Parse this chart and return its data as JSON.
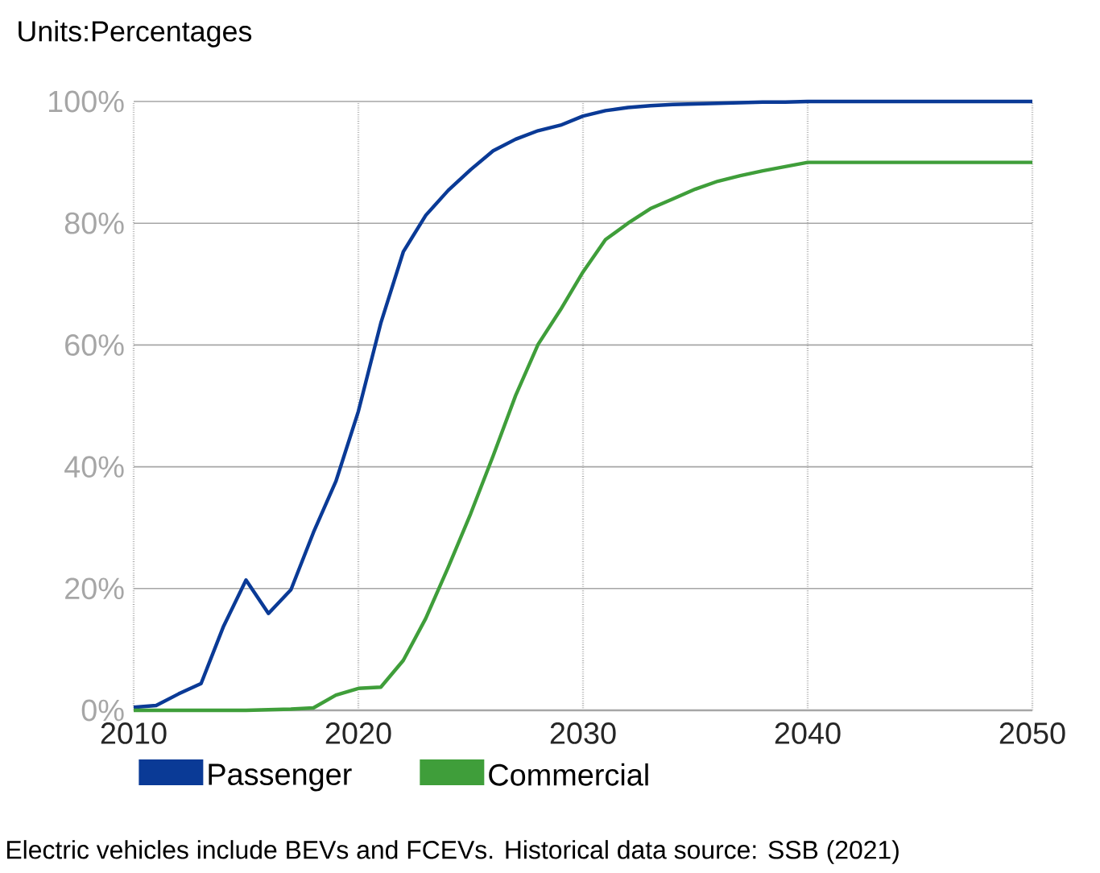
{
  "chart_data": {
    "type": "line",
    "title": "Units:Percentages",
    "x": [
      2010,
      2011,
      2012,
      2013,
      2014,
      2015,
      2016,
      2017,
      2018,
      2019,
      2020,
      2021,
      2022,
      2023,
      2024,
      2025,
      2026,
      2027,
      2028,
      2029,
      2030,
      2031,
      2032,
      2033,
      2034,
      2035,
      2036,
      2037,
      2038,
      2039,
      2040,
      2050
    ],
    "series": [
      {
        "name": "Passenger",
        "color": "#0a3a96",
        "values": [
          0.5,
          0.8,
          2.7,
          4.4,
          13.8,
          21.4,
          15.9,
          19.8,
          29.2,
          37.6,
          49.1,
          63.6,
          75.3,
          81.3,
          85.4,
          88.8,
          91.9,
          93.8,
          95.2,
          96.1,
          97.6,
          98.5,
          99.0,
          99.3,
          99.5,
          99.6,
          99.7,
          99.8,
          99.9,
          99.9,
          100,
          100
        ]
      },
      {
        "name": "Commercial",
        "color": "#3f9e3a",
        "values": [
          0,
          0,
          0,
          0,
          0,
          0,
          0.1,
          0.2,
          0.4,
          2.5,
          3.6,
          3.8,
          8.2,
          15.1,
          23.5,
          32.3,
          41.8,
          51.7,
          60.1,
          65.8,
          72.0,
          77.3,
          80.0,
          82.4,
          84.0,
          85.6,
          86.9,
          87.8,
          88.6,
          89.3,
          90,
          90
        ]
      }
    ],
    "xlim": [
      2010,
      2050
    ],
    "xticks": [
      2010,
      2020,
      2030,
      2040,
      2050
    ],
    "ylim": [
      0,
      100
    ],
    "yticks": [
      {
        "value": 0,
        "label": "0%"
      },
      {
        "value": 20,
        "label": "20%"
      },
      {
        "value": 40,
        "label": "40%"
      },
      {
        "value": 60,
        "label": "60%"
      },
      {
        "value": 80,
        "label": "80%"
      },
      {
        "value": 100,
        "label": "100%"
      }
    ],
    "grid": true,
    "legend": "bottom",
    "marker": "none",
    "line_style": "solid",
    "annotations": [
      "Electric vehicles include BEVs and FCEVs. Historical data source: SSB (2021)"
    ]
  }
}
